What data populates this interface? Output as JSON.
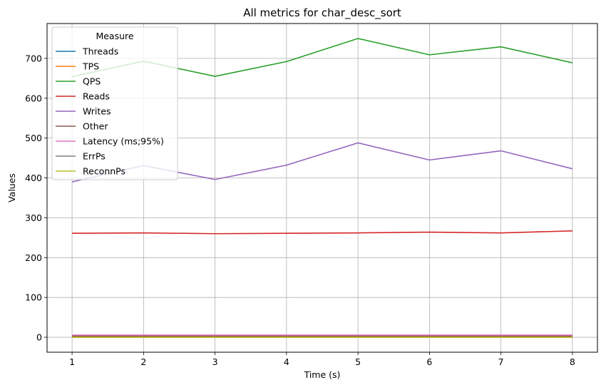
{
  "chart_data": {
    "type": "line",
    "title": "All metrics for char_desc_sort",
    "xlabel": "Time (s)",
    "ylabel": "Values",
    "x": [
      1,
      2,
      3,
      4,
      5,
      6,
      7,
      8
    ],
    "xticks": [
      1,
      2,
      3,
      4,
      5,
      6,
      7,
      8
    ],
    "yticks": [
      0,
      100,
      200,
      300,
      400,
      500,
      600,
      700
    ],
    "xlim": [
      0.65,
      8.35
    ],
    "ylim": [
      -37.5,
      787.5
    ],
    "grid": true,
    "legend": {
      "title": "Measure",
      "placement": "top-left"
    },
    "series": [
      {
        "name": "Threads",
        "color": "#1f77b4",
        "values": [
          4,
          4,
          4,
          4,
          4,
          4,
          4,
          4
        ]
      },
      {
        "name": "TPS",
        "color": "#ff7f0e",
        "values": [
          1.8,
          1.8,
          1.8,
          1.8,
          1.8,
          1.8,
          1.8,
          1.8
        ]
      },
      {
        "name": "QPS",
        "color": "#2ca02c",
        "values": [
          654,
          693,
          655,
          692,
          750,
          709,
          729,
          689
        ]
      },
      {
        "name": "Reads",
        "color": "#d62728",
        "values": [
          261,
          262,
          260,
          261,
          262,
          264,
          262,
          267
        ]
      },
      {
        "name": "Writes",
        "color": "#9467bd",
        "values": [
          390,
          431,
          396,
          432,
          488,
          445,
          468,
          423
        ]
      },
      {
        "name": "Other",
        "color": "#8c564b",
        "values": [
          3,
          3,
          3,
          3,
          3,
          3,
          3,
          3
        ]
      },
      {
        "name": "Latency (ms;95%)",
        "color": "#e377c2",
        "values": [
          5.5,
          5.5,
          5.5,
          5.5,
          5.5,
          5.5,
          5.5,
          5.5
        ]
      },
      {
        "name": "ErrPs",
        "color": "#7f7f7f",
        "values": [
          0,
          0,
          0,
          0,
          0,
          0,
          0,
          0
        ]
      },
      {
        "name": "ReconnPs",
        "color": "#bcbd22",
        "values": [
          0,
          0,
          0,
          0,
          0,
          0,
          0,
          0
        ]
      }
    ]
  }
}
